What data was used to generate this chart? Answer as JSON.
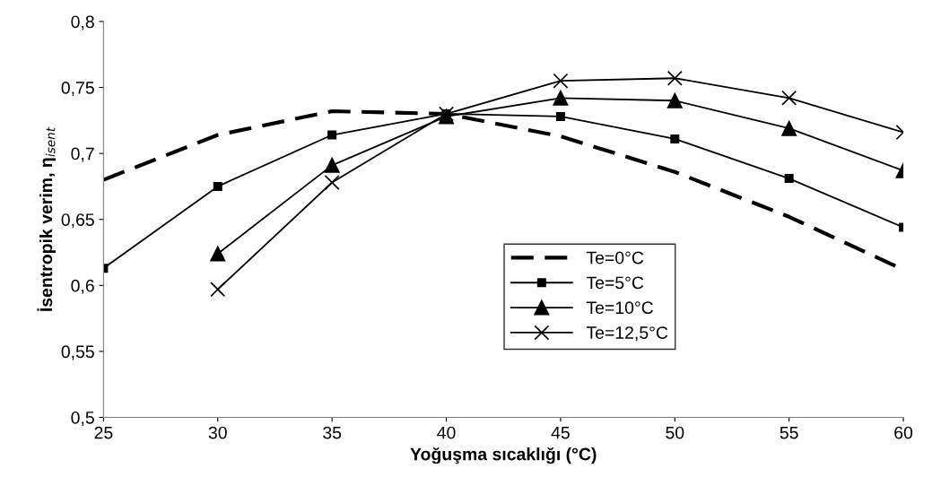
{
  "chart_data": {
    "type": "line",
    "xlabel": "Yoğuşma sıcaklığı (°C)",
    "ylabel": "İsentropik verim, η$_{isent}$",
    "x": [
      25,
      30,
      35,
      40,
      45,
      50,
      55,
      60
    ],
    "series": [
      {
        "name": "Te=0°C",
        "color": "#000000",
        "marker": "none",
        "line_style": "dashed",
        "values": [
          0.68,
          0.714,
          0.732,
          0.73,
          0.713,
          0.686,
          0.652,
          0.612
        ]
      },
      {
        "name": "Te=5°C",
        "color": "#000000",
        "marker": "square",
        "line_style": "solid",
        "values": [
          0.613,
          0.675,
          0.714,
          0.73,
          0.728,
          0.711,
          0.681,
          0.644
        ]
      },
      {
        "name": "Te=10°C",
        "color": "#000000",
        "marker": "triangle",
        "line_style": "solid",
        "values": [
          null,
          0.624,
          0.691,
          0.728,
          0.742,
          0.74,
          0.719,
          0.687
        ]
      },
      {
        "name": "Te=12,5°C",
        "color": "#000000",
        "marker": "cross",
        "line_style": "solid",
        "values": [
          null,
          0.597,
          0.678,
          0.73,
          0.755,
          0.757,
          0.742,
          0.716
        ]
      }
    ],
    "xlim": [
      25,
      60
    ],
    "xticks": [
      25,
      30,
      35,
      40,
      45,
      50,
      55,
      60
    ],
    "ylim": [
      0.5,
      0.8
    ],
    "yticks": [
      {
        "value": 0.5,
        "label": "0,5"
      },
      {
        "value": 0.55,
        "label": "0,55"
      },
      {
        "value": 0.6,
        "label": "0,6"
      },
      {
        "value": 0.65,
        "label": "0,65"
      },
      {
        "value": 0.7,
        "label": "0,7"
      },
      {
        "value": 0.75,
        "label": "0,75"
      },
      {
        "value": 0.8,
        "label": "0,8"
      }
    ],
    "grid": false,
    "legend": "bottom right"
  }
}
